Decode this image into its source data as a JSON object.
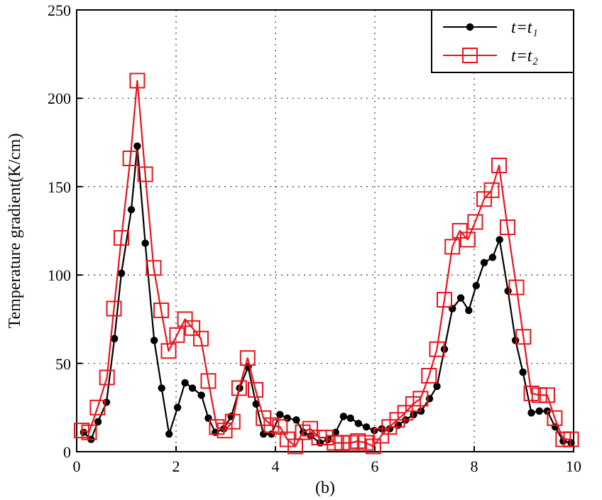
{
  "chart_data": {
    "type": "line",
    "xlabel": "(b)",
    "ylabel": "Temperature gradient(K/cm)",
    "xlim": [
      0,
      10
    ],
    "ylim": [
      0,
      250
    ],
    "xticks": [
      0,
      2,
      4,
      6,
      8,
      10
    ],
    "yticks": [
      0,
      50,
      100,
      150,
      200,
      250
    ],
    "grid": true,
    "legend": "top right",
    "line_style": "solid",
    "series": [
      {
        "name": "t=t₁",
        "color": "#000000",
        "marker": "circle",
        "x": [
          0.14,
          0.29,
          0.43,
          0.6,
          0.76,
          0.9,
          1.1,
          1.22,
          1.38,
          1.56,
          1.71,
          1.86,
          2.03,
          2.18,
          2.33,
          2.51,
          2.65,
          2.79,
          2.96,
          3.11,
          3.28,
          3.45,
          3.61,
          3.76,
          3.92,
          4.09,
          4.24,
          4.42,
          4.56,
          4.71,
          4.9,
          5.06,
          5.21,
          5.37,
          5.51,
          5.67,
          5.83,
          5.99,
          6.14,
          6.3,
          6.47,
          6.62,
          6.78,
          6.93,
          7.1,
          7.25,
          7.4,
          7.56,
          7.73,
          7.89,
          8.04,
          8.2,
          8.37,
          8.51,
          8.68,
          8.83,
          8.98,
          9.15,
          9.31,
          9.47,
          9.63,
          9.79,
          9.95
        ],
        "values": [
          11,
          7,
          17,
          28,
          64,
          101,
          137,
          173,
          118,
          63,
          36,
          10,
          25,
          39,
          36,
          32,
          19,
          11,
          13,
          20,
          36,
          48,
          27,
          10,
          10,
          21,
          19,
          18,
          11,
          9,
          5,
          7,
          11,
          20,
          19,
          16,
          14,
          12,
          13,
          13,
          15,
          18,
          21,
          23,
          30,
          37,
          58,
          81,
          87,
          80,
          94,
          107,
          110,
          120,
          91,
          63,
          45,
          22,
          23,
          23,
          14,
          6,
          5
        ]
      },
      {
        "name": "t=t₂",
        "color": "#e8141c",
        "marker": "square",
        "x": [
          0.1,
          0.25,
          0.42,
          0.61,
          0.75,
          0.9,
          1.08,
          1.22,
          1.38,
          1.55,
          1.7,
          1.85,
          2.02,
          2.18,
          2.33,
          2.5,
          2.65,
          2.82,
          2.98,
          3.14,
          3.27,
          3.44,
          3.6,
          3.76,
          3.92,
          4.09,
          4.24,
          4.4,
          4.55,
          4.7,
          4.88,
          5.02,
          5.19,
          5.34,
          5.51,
          5.66,
          5.82,
          5.97,
          6.13,
          6.29,
          6.45,
          6.61,
          6.77,
          6.92,
          7.09,
          7.25,
          7.4,
          7.56,
          7.71,
          7.87,
          8.02,
          8.2,
          8.35,
          8.5,
          8.67,
          8.85,
          8.99,
          9.15,
          9.31,
          9.47,
          9.62,
          9.79,
          9.95
        ],
        "values": [
          12,
          11,
          25,
          42,
          81,
          121,
          166,
          210,
          157,
          104,
          80,
          57,
          66,
          75,
          70,
          64,
          40,
          14,
          12,
          17,
          36,
          53,
          35,
          19,
          15,
          14,
          7,
          3,
          11,
          13,
          8,
          8,
          5,
          5,
          5,
          6,
          5,
          3,
          9,
          14,
          18,
          22,
          27,
          30,
          43,
          58,
          86,
          116,
          125,
          120,
          130,
          143,
          148,
          162,
          127,
          93,
          65,
          33,
          32,
          32,
          19,
          7,
          7
        ]
      }
    ]
  }
}
